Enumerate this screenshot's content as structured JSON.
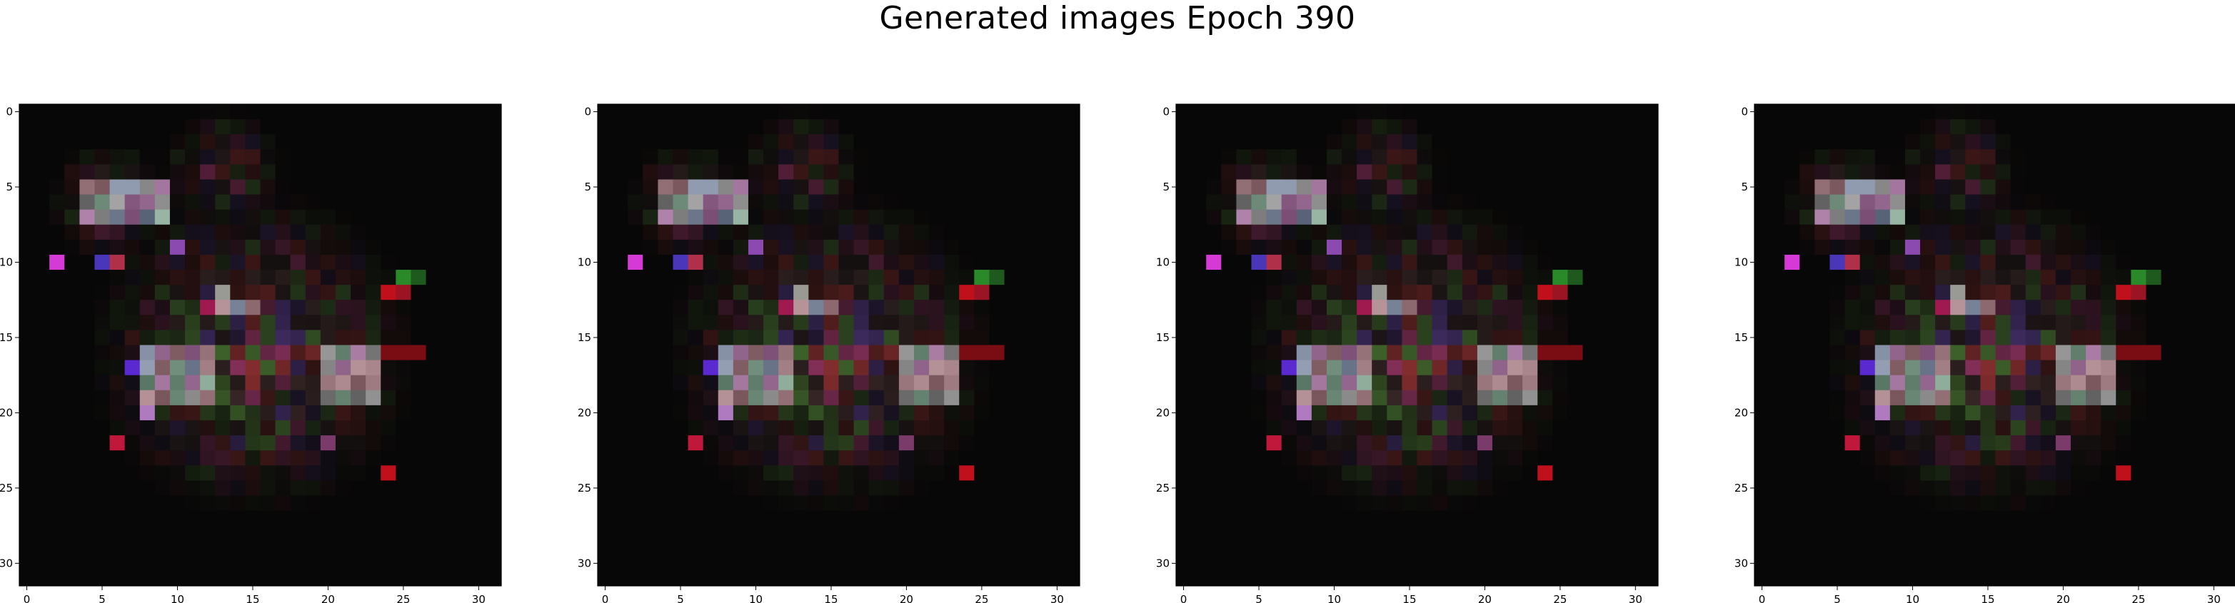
{
  "title": "Generated images Epoch 390",
  "grid_size": 32,
  "x_ticks": [
    "0",
    "5",
    "10",
    "15",
    "20",
    "25",
    "30"
  ],
  "y_ticks": [
    "0",
    "5",
    "10",
    "15",
    "20",
    "25",
    "30"
  ],
  "panels": [
    {
      "name": "generated-image-1"
    },
    {
      "name": "generated-image-2"
    },
    {
      "name": "generated-image-3"
    },
    {
      "name": "generated-image-4"
    }
  ],
  "colors": {
    "background": "#070606",
    "highlight_magenta": "#d63ad6",
    "highlight_red": "#c0101c",
    "highlight_violet": "#5a2ad0",
    "gray_block": "#8a8a84"
  }
}
